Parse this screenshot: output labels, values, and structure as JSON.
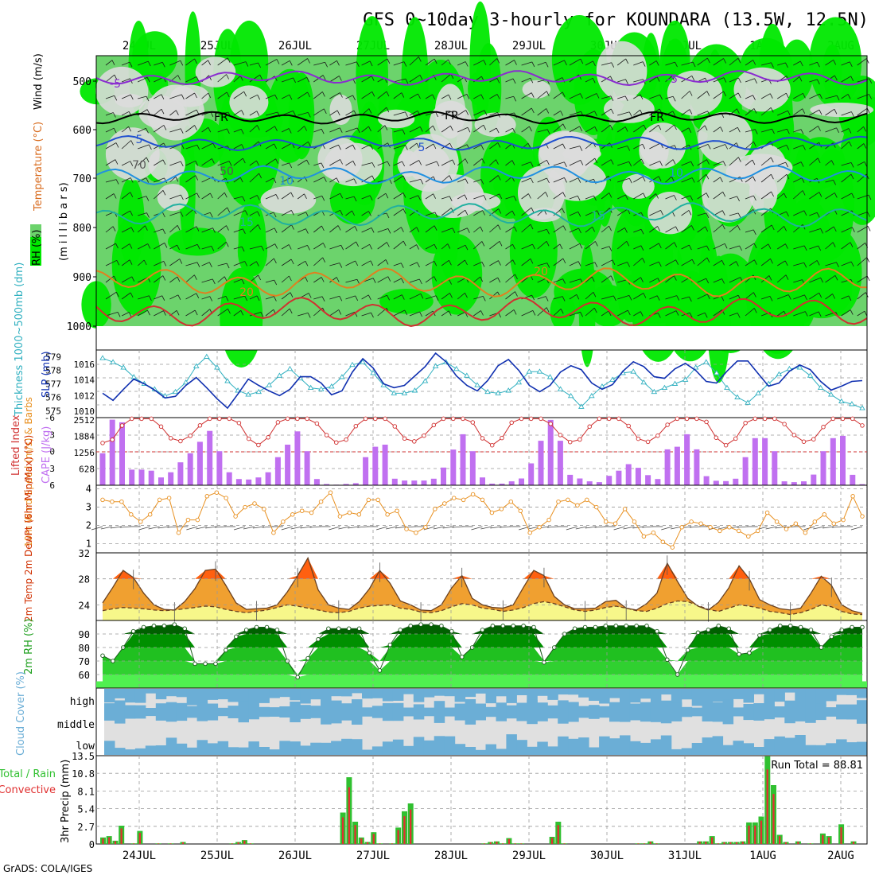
{
  "header": {
    "title": "GFS 0~10day 3-hourly for KOUNDARA (13.5W, 12.5N)",
    "credit": "GrADS: COLA/IGES"
  },
  "chart_data": {
    "type": "line",
    "dates": [
      "24JUL",
      "25JUL",
      "26JUL",
      "27JUL",
      "28JUL",
      "29JUL",
      "30JUL",
      "31JUL",
      "1AUG",
      "2AUG"
    ],
    "colors": {
      "rh_light": "#dcdcdc",
      "rh_mid": "#6cd36c",
      "rh_high": "#00e800",
      "temp_m5": "#8a2bd0",
      "temp_fr": "#000000",
      "temp_5": "#2050d0",
      "temp_10": "#2090e0",
      "temp_15": "#20b0a0",
      "temp_20": "#e08020",
      "temp_25": "#d03030",
      "thickness": "#30b0c0",
      "slp": "#1030b0",
      "lifted": "#d03030",
      "cape": "#c070f0",
      "wind10": "#e89020",
      "t2m_fill": "#f0a030",
      "t2m_hot": "#ff6010",
      "dew_fill": "#f7f78a",
      "rh2_1": "#50f050",
      "rh2_2": "#20c020",
      "rh2_3": "#009000",
      "rh2_4": "#006000",
      "cloud": "#6baed6",
      "cloud_bg": "#e0e0e0",
      "rain_total": "#30c030",
      "rain_conv": "#e03030"
    },
    "upper_air": {
      "ylabel": "(m i l l i b a r s)",
      "label_rh": "RH (%)",
      "label_temp": "Temperature (°C)",
      "label_wind": "Wind (m/s)",
      "pressure_ticks": [
        "500",
        "600",
        "700",
        "800",
        "900",
        "1000"
      ],
      "contour_labels": [
        "-5",
        "-5",
        "FR",
        "FR",
        "FR",
        "5",
        "5",
        "10",
        "10",
        "15",
        "15",
        "20",
        "20",
        "50",
        "70"
      ]
    },
    "thickness_slp": {
      "ylabel_left": "Thickness 1000~500mb (dm)",
      "ylabel_right": "SLP (mb)",
      "thickness_ticks": [
        "579",
        "578",
        "577",
        "576",
        "575"
      ],
      "slp_ticks": [
        "1016",
        "1014",
        "1012",
        "1010"
      ],
      "thickness_dm": [
        578.9,
        578.6,
        578.2,
        577.5,
        577,
        576.6,
        576.1,
        576.4,
        577.1,
        578.3,
        579,
        578.2,
        577.2,
        576.5,
        576.2,
        576.4,
        576.9,
        577.6,
        578.1,
        577.4,
        576.7,
        576.6,
        576.8,
        577.5,
        578.4,
        578.6,
        577.8,
        576.9,
        576.3,
        576.3,
        576.5,
        577.2,
        578.3,
        578.6,
        578.1,
        577.6,
        576.9,
        576.4,
        576.3,
        576.5,
        577.1,
        577.9,
        577.9,
        577.5,
        576.6,
        576.1,
        575.3,
        576.1,
        576.8,
        577.3,
        577.8,
        577.9,
        577.1,
        576.4,
        576.7,
        577,
        577.3,
        578.2,
        578.6,
        577.8,
        576.7,
        576,
        575.6,
        576.3,
        577,
        577.7,
        578.1,
        578.2,
        577.6,
        576.7,
        576.2,
        575.7,
        575.5,
        575.2
      ],
      "slp_mb": [
        1012.3,
        1011.4,
        1012.8,
        1014.1,
        1013.5,
        1012.7,
        1011.7,
        1011.9,
        1013.3,
        1014.3,
        1013,
        1011.6,
        1010.4,
        1012.2,
        1014.1,
        1013.3,
        1012.6,
        1012,
        1012.8,
        1014.4,
        1014.4,
        1013.6,
        1012.1,
        1012.6,
        1015,
        1016.7,
        1015.5,
        1013.5,
        1013,
        1013.3,
        1014.5,
        1015.7,
        1017.4,
        1016.3,
        1014.5,
        1013.3,
        1012.6,
        1013.9,
        1015.8,
        1016.6,
        1015.2,
        1013.3,
        1012.5,
        1013.3,
        1015,
        1015.8,
        1015.3,
        1013.6,
        1012.8,
        1013.4,
        1015.1,
        1016.3,
        1015.7,
        1014.4,
        1014.2,
        1015.4,
        1016.1,
        1015.2,
        1013.8,
        1013.6,
        1015.1,
        1016.4,
        1016.4,
        1014.8,
        1013.2,
        1013.6,
        1015.1,
        1015.9,
        1015.3,
        1013.8,
        1012.7,
        1013.2,
        1013.8,
        1013.9
      ]
    },
    "instability": {
      "ylabel_left": "Lifted Index",
      "ylabel_right": "CAPE (J/kg)",
      "li_ticks": [
        "-6",
        "-3",
        "0",
        "3",
        "6"
      ],
      "cape_ticks": [
        "2512",
        "1884",
        "1256",
        "628"
      ],
      "cape_jkg": [
        1230,
        2520,
        2420,
        600,
        600,
        560,
        300,
        500,
        880,
        1230,
        1670,
        2090,
        1310,
        500,
        240,
        220,
        300,
        500,
        1080,
        1560,
        2070,
        1310,
        240,
        45,
        20,
        50,
        80,
        1080,
        1480,
        1560,
        250,
        180,
        180,
        180,
        250,
        680,
        1370,
        1960,
        1310,
        300,
        60,
        60,
        150,
        260,
        840,
        1710,
        2510,
        1710,
        400,
        260,
        150,
        120,
        360,
        560,
        810,
        670,
        390,
        240,
        1380,
        1480,
        1960,
        1380,
        350,
        170,
        160,
        250,
        1080,
        1810,
        1810,
        1310,
        150,
        120,
        150,
        410,
        1310,
        1810,
        1900,
        400,
        40
      ]
    },
    "wind10m": {
      "ylabel": "10m Wind Speed (m/s) & Barbs",
      "speed_ticks": [
        "4",
        "3",
        "2",
        "1"
      ],
      "speed_ms": [
        3.4,
        3.3,
        3.3,
        2.6,
        2.2,
        2.6,
        3.4,
        3.5,
        1.6,
        2.3,
        2.3,
        3.6,
        3.8,
        3.5,
        2.5,
        3.0,
        3.2,
        2.9,
        1.6,
        2.2,
        2.6,
        2.8,
        2.7,
        3.3,
        3.8,
        2.5,
        2.7,
        2.6,
        3.4,
        3.4,
        2.6,
        2.8,
        1.8,
        1.6,
        1.9,
        2.9,
        3.2,
        3.5,
        3.4,
        3.7,
        3.4,
        2.7,
        2.9,
        3.3,
        2.8,
        1.6,
        1.9,
        2.3,
        3.3,
        3.4,
        3.1,
        3.4,
        3.0,
        2.2,
        2.1,
        2.9,
        2.2,
        1.4,
        1.6,
        1.1,
        0.8,
        1.9,
        2.2,
        2.1,
        1.9,
        1.7,
        1.9,
        1.7,
        1.4,
        1.7,
        2.7,
        2.2,
        1.8,
        2.1,
        1.6,
        2.2,
        2.6,
        2.1,
        2.3,
        3.6,
        2.5
      ]
    },
    "temp2m": {
      "ylabel": "2m Temp 2m DewPt (6hr Min/Max) (°C)",
      "ticks": [
        "32",
        "28",
        "24"
      ],
      "temp_c": [
        24.3,
        26.7,
        29.3,
        28.2,
        25.8,
        24,
        23.3,
        23.2,
        24.5,
        26.5,
        29.3,
        29.5,
        27,
        24.3,
        23.3,
        23.4,
        23.5,
        24,
        26,
        28.5,
        31.2,
        26.3,
        24,
        23.5,
        23.3,
        24.5,
        26.5,
        29.3,
        27.3,
        24.6,
        24,
        23.2,
        23.1,
        24,
        26.6,
        28.5,
        25,
        24,
        23.6,
        23.5,
        24,
        26.7,
        29.3,
        28.5,
        25.3,
        24,
        23.4,
        23.4,
        23.5,
        24.5,
        24.7,
        23.5,
        23.2,
        24.2,
        25.8,
        30.4,
        27.6,
        25,
        23.8,
        23.2,
        24.4,
        26.6,
        30,
        28,
        24.8,
        24,
        23.4,
        23.2,
        23.5,
        25.8,
        28.4,
        27,
        24,
        23.1,
        22.7
      ],
      "dewpt_c": [
        23.1,
        23.4,
        23.6,
        23.5,
        23.4,
        23.2,
        23.1,
        23.2,
        23.4,
        23.6,
        23.8,
        23.7,
        23.3,
        23,
        22.8,
        23,
        23.2,
        23.6,
        24,
        23.8,
        23.5,
        23.2,
        22.9,
        22.8,
        23,
        23.5,
        23.8,
        23.9,
        24,
        23.5,
        23.3,
        22.9,
        22.8,
        23.1,
        23.7,
        24.2,
        24,
        23.5,
        23.3,
        23,
        23.2,
        23.6,
        24.2,
        24.5,
        24.2,
        23.7,
        23.2,
        23,
        23.2,
        23.6,
        23.8,
        23.5,
        23.1,
        23,
        23.5,
        24.2,
        24.6,
        24.5,
        23.9,
        23.3,
        23,
        23.5,
        24,
        23.8,
        23.5,
        23,
        22.8,
        22.5,
        22.8,
        23.3,
        24,
        23.7,
        23,
        22.6,
        22.5
      ]
    },
    "rh2m": {
      "ylabel": "2m RH (%)",
      "ticks": [
        "90",
        "80",
        "70",
        "60"
      ],
      "rh_pct": [
        74,
        70,
        80,
        92,
        95,
        96,
        96,
        97,
        94,
        68,
        68,
        68,
        78,
        88,
        93,
        95,
        95,
        93,
        70,
        58,
        72,
        86,
        94,
        94,
        94,
        94,
        76,
        63,
        82,
        93,
        96,
        97,
        97,
        96,
        92,
        73,
        80,
        93,
        96,
        96,
        96,
        96,
        95,
        69,
        80,
        90,
        94,
        95,
        95,
        96,
        96,
        96,
        96,
        96,
        92,
        71,
        60,
        78,
        91,
        93,
        96,
        94,
        75,
        76,
        89,
        93,
        96,
        96,
        95,
        93,
        80,
        88,
        93,
        95,
        95
      ]
    },
    "cloud": {
      "ylabel": "Cloud Cover (%)",
      "levels": [
        "high",
        "middle",
        "low"
      ]
    },
    "precip": {
      "ylabel_left": "Total / Rain",
      "ylabel_left2": "Convective",
      "ylabel_right": "3hr Precip (mm)",
      "ticks": [
        "13.5",
        "10.8",
        "8.1",
        "5.4",
        "2.7",
        "0"
      ],
      "run_total": "Run Total = 88.81",
      "total_mm": [
        1,
        1.2,
        0.5,
        2.8,
        0,
        0.1,
        2,
        0,
        0,
        0.1,
        0,
        0.1,
        0,
        0.3,
        0,
        0,
        0,
        0,
        0,
        0,
        0,
        0.1,
        0.3,
        0.6,
        0.1,
        0,
        0,
        0,
        0,
        0,
        0,
        0,
        0,
        0,
        0,
        0,
        0,
        0,
        0,
        4.8,
        10.2,
        3.4,
        1,
        0.3,
        1.8,
        0.1,
        0,
        0.1,
        2.5,
        5,
        6.2,
        0,
        0,
        0,
        0,
        0,
        0,
        0,
        0,
        0,
        0,
        0,
        0.1,
        0.3,
        0.4,
        0.1,
        0.9,
        0.1,
        0.1,
        0,
        0,
        0,
        0,
        1.1,
        3.4,
        0.1,
        0,
        0,
        0,
        0,
        0,
        0,
        0,
        0,
        0,
        0,
        0,
        0.1,
        0.1,
        0.4,
        0.1,
        0,
        0,
        0,
        0,
        0,
        0,
        0.4,
        0.4,
        1.2,
        0.1,
        0.3,
        0.3,
        0.3,
        0.4,
        3.3,
        3.3,
        4.2,
        13.4,
        9,
        1.4,
        0.3,
        0,
        0.4,
        0,
        0.1,
        0,
        1.6,
        1.2,
        0,
        3,
        0,
        0.4,
        0
      ]
    }
  }
}
